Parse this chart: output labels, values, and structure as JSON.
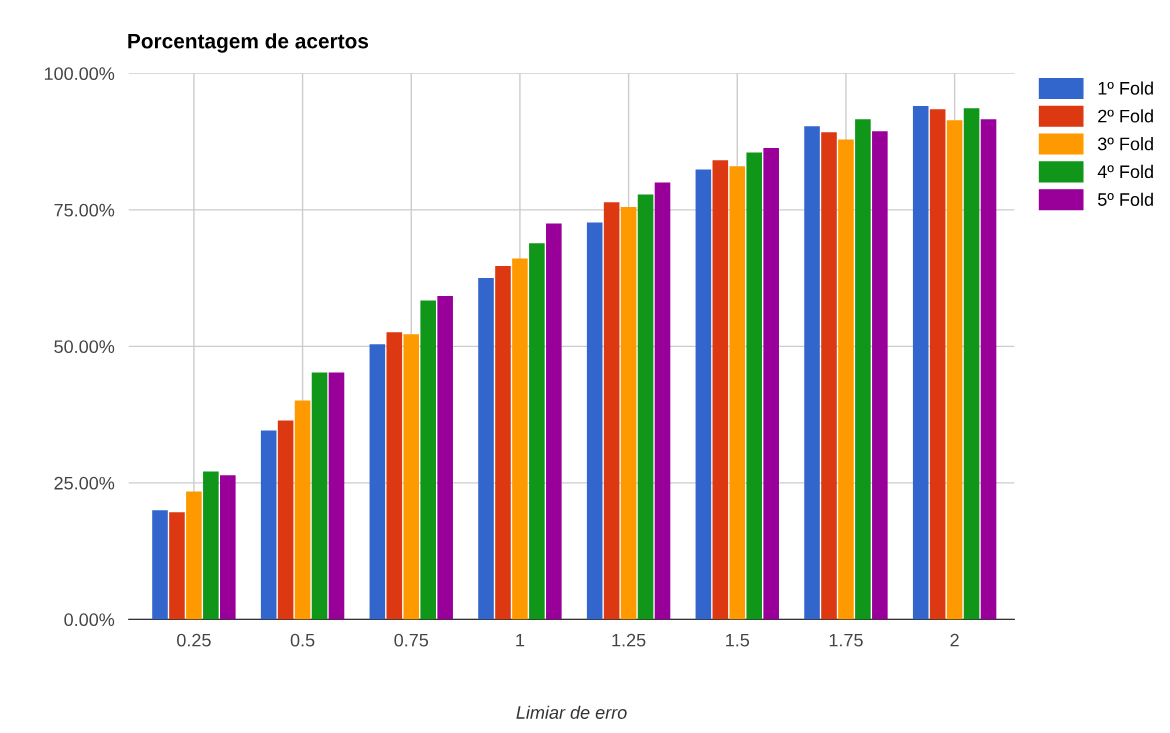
{
  "chart_data": {
    "type": "bar",
    "title": "Porcentagem de acertos",
    "xlabel": "Limiar de erro",
    "categories": [
      "0.25",
      "0.5",
      "0.75",
      "1",
      "1.25",
      "1.5",
      "1.75",
      "2"
    ],
    "series": [
      {
        "name": "1º Fold",
        "color": "#3366cc",
        "values": [
          20.0,
          34.6,
          50.4,
          62.5,
          72.7,
          82.4,
          90.3,
          94.0
        ]
      },
      {
        "name": "2º Fold",
        "color": "#dc3912",
        "values": [
          19.6,
          36.4,
          52.6,
          64.7,
          76.4,
          84.1,
          89.2,
          93.4
        ]
      },
      {
        "name": "3º Fold",
        "color": "#ff9900",
        "values": [
          23.4,
          40.1,
          52.2,
          66.1,
          75.5,
          83.0,
          87.9,
          91.4
        ]
      },
      {
        "name": "4º Fold",
        "color": "#109618",
        "values": [
          27.1,
          45.2,
          58.4,
          68.9,
          77.8,
          85.5,
          91.6,
          93.6
        ]
      },
      {
        "name": "5º Fold",
        "color": "#990099",
        "values": [
          26.4,
          45.2,
          59.2,
          72.5,
          80.0,
          86.3,
          89.4,
          91.6
        ]
      }
    ],
    "ylim": [
      0,
      100
    ],
    "yticks": [
      {
        "value": 0,
        "label": "0.00%"
      },
      {
        "value": 25,
        "label": "25.00%"
      },
      {
        "value": 50,
        "label": "50.00%"
      },
      {
        "value": 75,
        "label": "75.00%"
      },
      {
        "value": 100,
        "label": "100.00%"
      }
    ],
    "grid": true,
    "legend": "top right"
  }
}
